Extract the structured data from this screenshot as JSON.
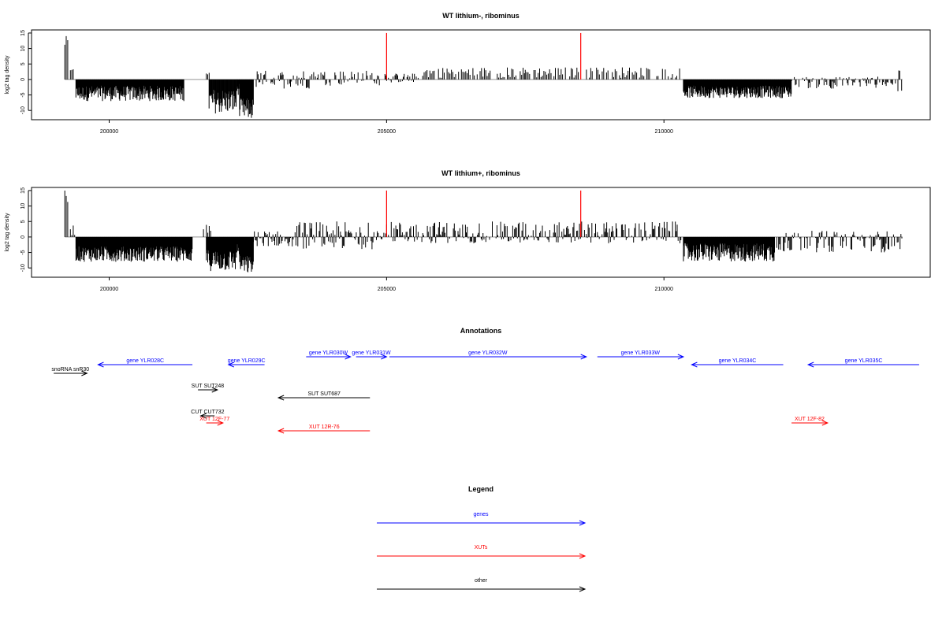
{
  "chart_data": [
    {
      "type": "bar",
      "title": "WT lithium-, ribominus",
      "ylabel": "log2 tag density",
      "xlabel": "",
      "xlim": [
        198600,
        214800
      ],
      "ylim": [
        -13,
        16
      ],
      "yticks": [
        15,
        10,
        5,
        0,
        -5,
        -10
      ],
      "xticks": [
        200000,
        205000,
        210000
      ],
      "grid": false,
      "markers": [
        {
          "x": 205000,
          "value": 15,
          "color": "#ff0000"
        },
        {
          "x": 208500,
          "value": 15,
          "color": "#ff0000"
        }
      ],
      "series_color": "#000000",
      "segments": [
        [
          199200,
          199300,
          10,
          14
        ],
        [
          199300,
          199400,
          0.5,
          4
        ],
        [
          199400,
          201350,
          -7,
          -2
        ],
        [
          201750,
          201850,
          1,
          4
        ],
        [
          201800,
          202300,
          -11,
          -3
        ],
        [
          202300,
          202350,
          -5,
          -1
        ],
        [
          202350,
          202600,
          -13,
          -6
        ],
        [
          202650,
          203700,
          -3,
          3
        ],
        [
          203700,
          205000,
          -2,
          3
        ],
        [
          205000,
          205600,
          -1,
          2
        ],
        [
          205600,
          207500,
          0.5,
          4
        ],
        [
          207500,
          208500,
          0.5,
          4
        ],
        [
          208500,
          210300,
          0.5,
          4
        ],
        [
          210350,
          212300,
          -6,
          -2
        ],
        [
          212300,
          214200,
          -3,
          1
        ],
        [
          214200,
          214300,
          -5,
          3
        ]
      ]
    },
    {
      "type": "bar",
      "title": "WT lithium+, ribominus",
      "ylabel": "log2 tag density",
      "xlabel": "",
      "xlim": [
        198600,
        214800
      ],
      "ylim": [
        -13,
        16
      ],
      "yticks": [
        15,
        10,
        5,
        0,
        -5,
        -10
      ],
      "xticks": [
        200000,
        205000,
        210000
      ],
      "grid": false,
      "markers": [
        {
          "x": 205000,
          "value": 15,
          "color": "#ff0000"
        },
        {
          "x": 208500,
          "value": 15,
          "color": "#ff0000"
        }
      ],
      "series_color": "#000000",
      "segments": [
        [
          199200,
          199300,
          10,
          15
        ],
        [
          199300,
          199400,
          0.5,
          4
        ],
        [
          199400,
          201500,
          -8,
          -3
        ],
        [
          201700,
          201850,
          1,
          4
        ],
        [
          201750,
          202300,
          -11,
          -4
        ],
        [
          202300,
          202350,
          -6,
          -2
        ],
        [
          202350,
          202600,
          -12,
          -6
        ],
        [
          202600,
          203300,
          -3,
          2
        ],
        [
          203300,
          204800,
          -4,
          5
        ],
        [
          204800,
          205000,
          -1,
          3
        ],
        [
          205000,
          208500,
          -2,
          5
        ],
        [
          208500,
          210350,
          -2,
          5
        ],
        [
          210350,
          212000,
          -8,
          -2
        ],
        [
          212000,
          212600,
          -5,
          2
        ],
        [
          212600,
          214300,
          -5,
          2
        ]
      ]
    }
  ],
  "annotations": {
    "title": "Annotations",
    "features": [
      {
        "label": "snoRNA snR30",
        "start": 199000,
        "end": 199600,
        "row": 2,
        "color": "#000000"
      },
      {
        "label": "gene YLR028C",
        "start": 201500,
        "end": 199800,
        "row": 1,
        "color": "#0000ff"
      },
      {
        "label": "gene YLR029C",
        "start": 202800,
        "end": 202150,
        "row": 1,
        "color": "#0000ff"
      },
      {
        "label": "gene YLR030W",
        "start": 203550,
        "end": 204350,
        "row": 0,
        "color": "#0000ff"
      },
      {
        "label": "gene YLR031W",
        "start": 204450,
        "end": 205000,
        "row": 0,
        "color": "#0000ff"
      },
      {
        "label": "gene YLR032W",
        "start": 205050,
        "end": 208600,
        "row": 0,
        "color": "#0000ff"
      },
      {
        "label": "gene YLR033W",
        "start": 208800,
        "end": 210350,
        "row": 0,
        "color": "#0000ff"
      },
      {
        "label": "gene YLR034C",
        "start": 212150,
        "end": 210500,
        "row": 1,
        "color": "#0000ff"
      },
      {
        "label": "gene YLR035C",
        "start": 214600,
        "end": 212600,
        "row": 1,
        "color": "#0000ff"
      },
      {
        "label": "SUT SUT248",
        "start": 201600,
        "end": 201950,
        "row": 3,
        "color": "#000000"
      },
      {
        "label": "SUT SUT687",
        "start": 204700,
        "end": 203050,
        "row": 4,
        "color": "#000000"
      },
      {
        "label": "CUT CUT732",
        "start": 201900,
        "end": 201650,
        "row": 5,
        "color": "#000000"
      },
      {
        "label": "XUT 12F-77",
        "start": 201750,
        "end": 202050,
        "row": 6,
        "color": "#ff0000"
      },
      {
        "label": "XUT 12R-76",
        "start": 204700,
        "end": 203050,
        "row": 7,
        "color": "#ff0000"
      },
      {
        "label": "XUT 12F-82",
        "start": 212300,
        "end": 212950,
        "row": 6,
        "color": "#ff0000"
      }
    ]
  },
  "legend": {
    "title": "Legend",
    "items": [
      {
        "label": "genes",
        "color": "#0000ff"
      },
      {
        "label": "XUTs",
        "color": "#ff0000"
      },
      {
        "label": "other",
        "color": "#000000"
      }
    ]
  }
}
